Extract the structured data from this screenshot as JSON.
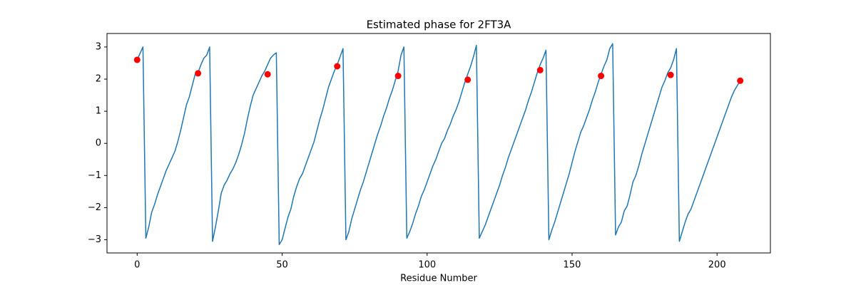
{
  "chart_data": {
    "type": "line",
    "title": "Estimated phase for 2FT3A",
    "x_label": "Residue Number",
    "xlim": [
      -10.4,
      218.4
    ],
    "ylim": [
      -3.41,
      3.42
    ],
    "xticks": [
      0,
      50,
      100,
      150,
      200
    ],
    "yticks": [
      {
        "value": -3,
        "label": "−3"
      },
      {
        "value": -2,
        "label": "−2"
      },
      {
        "value": -1,
        "label": "−1"
      },
      0,
      1,
      2,
      3
    ],
    "series": [
      {
        "type": "line",
        "color": "#1f77b4",
        "x": [
          0,
          1,
          2,
          3,
          4,
          5,
          6,
          7,
          8,
          9,
          10,
          11,
          12,
          13,
          14,
          15,
          16,
          17,
          18,
          19,
          20,
          21,
          22,
          23,
          24,
          25,
          26,
          27,
          28,
          29,
          30,
          31,
          32,
          33,
          34,
          35,
          36,
          37,
          38,
          39,
          40,
          41,
          42,
          43,
          44,
          45,
          46,
          47,
          48,
          49,
          50,
          51,
          52,
          53,
          54,
          55,
          56,
          57,
          58,
          59,
          60,
          61,
          62,
          63,
          64,
          65,
          66,
          67,
          68,
          69,
          70,
          71,
          72,
          73,
          74,
          75,
          76,
          77,
          78,
          79,
          80,
          81,
          82,
          83,
          84,
          85,
          86,
          87,
          88,
          89,
          90,
          91,
          92,
          93,
          94,
          95,
          96,
          97,
          98,
          99,
          100,
          101,
          102,
          103,
          104,
          105,
          106,
          107,
          108,
          109,
          110,
          111,
          112,
          113,
          114,
          115,
          116,
          117,
          118,
          119,
          120,
          121,
          122,
          123,
          124,
          125,
          126,
          127,
          128,
          129,
          130,
          131,
          132,
          133,
          134,
          135,
          136,
          137,
          138,
          139,
          140,
          141,
          142,
          143,
          144,
          145,
          146,
          147,
          148,
          149,
          150,
          151,
          152,
          153,
          154,
          155,
          156,
          157,
          158,
          159,
          160,
          161,
          162,
          163,
          164,
          165,
          166,
          167,
          168,
          169,
          170,
          171,
          172,
          173,
          174,
          175,
          176,
          177,
          178,
          179,
          180,
          181,
          182,
          183,
          184,
          185,
          186,
          187,
          188,
          189,
          190,
          191,
          192,
          193,
          194,
          195,
          196,
          197,
          198,
          199,
          200,
          201,
          202,
          203,
          204,
          205,
          206,
          207,
          208
        ],
        "values": [
          2.6,
          2.8,
          3.0,
          -2.95,
          -2.6,
          -2.15,
          -1.9,
          -1.6,
          -1.35,
          -1.1,
          -0.85,
          -0.65,
          -0.45,
          -0.25,
          0.05,
          0.4,
          0.8,
          1.2,
          1.45,
          1.8,
          2.15,
          2.2,
          2.45,
          2.65,
          2.75,
          3.0,
          -3.05,
          -2.6,
          -2.1,
          -1.55,
          -1.3,
          -1.15,
          -0.95,
          -0.8,
          -0.6,
          -0.35,
          -0.05,
          0.3,
          0.75,
          1.15,
          1.5,
          1.7,
          1.9,
          2.1,
          2.25,
          2.45,
          2.65,
          2.75,
          2.82,
          -3.15,
          -3.0,
          -2.65,
          -2.3,
          -2.05,
          -1.65,
          -1.35,
          -1.1,
          -0.95,
          -0.7,
          -0.45,
          -0.2,
          0.05,
          0.4,
          0.75,
          1.05,
          1.4,
          1.75,
          2.0,
          2.25,
          2.45,
          2.7,
          2.95,
          -3.0,
          -2.75,
          -2.35,
          -2.05,
          -1.75,
          -1.45,
          -1.2,
          -0.9,
          -0.6,
          -0.3,
          0.0,
          0.3,
          0.55,
          0.85,
          1.1,
          1.4,
          1.65,
          1.95,
          2.25,
          2.75,
          3.0,
          -2.95,
          -2.75,
          -2.5,
          -2.2,
          -1.95,
          -1.65,
          -1.45,
          -1.2,
          -0.95,
          -0.7,
          -0.5,
          -0.25,
          0.0,
          0.15,
          0.4,
          0.6,
          0.85,
          1.05,
          1.3,
          1.6,
          1.9,
          2.15,
          2.4,
          2.7,
          3.05,
          -2.95,
          -2.75,
          -2.55,
          -2.3,
          -2.05,
          -1.8,
          -1.55,
          -1.3,
          -1.0,
          -0.75,
          -0.45,
          -0.2,
          0.05,
          0.3,
          0.55,
          0.8,
          1.05,
          1.35,
          1.6,
          1.9,
          2.2,
          2.45,
          2.65,
          2.9,
          -3.0,
          -2.7,
          -2.45,
          -2.15,
          -1.85,
          -1.55,
          -1.25,
          -0.95,
          -0.6,
          -0.25,
          0.05,
          0.35,
          0.55,
          0.8,
          1.05,
          1.35,
          1.6,
          1.9,
          2.15,
          2.4,
          2.6,
          2.95,
          3.1,
          -2.85,
          -2.6,
          -2.45,
          -2.1,
          -1.95,
          -1.6,
          -1.2,
          -1.0,
          -0.7,
          -0.35,
          -0.05,
          0.25,
          0.55,
          0.85,
          1.15,
          1.45,
          1.75,
          1.95,
          2.2,
          2.35,
          2.6,
          2.95,
          -3.05,
          -2.75,
          -2.45,
          -2.2,
          -2.05,
          -1.8,
          -1.55,
          -1.3,
          -1.05,
          -0.8,
          -0.55,
          -0.3,
          -0.05,
          0.2,
          0.45,
          0.7,
          0.95,
          1.2,
          1.45,
          1.65,
          1.8,
          1.95
        ]
      },
      {
        "type": "scatter",
        "color": "#ff0000",
        "x": [
          0,
          21,
          45,
          69,
          90,
          114,
          139,
          160,
          184,
          208
        ],
        "values": [
          2.6,
          2.18,
          2.15,
          2.4,
          2.1,
          1.98,
          2.28,
          2.1,
          2.13,
          1.95
        ]
      }
    ]
  }
}
